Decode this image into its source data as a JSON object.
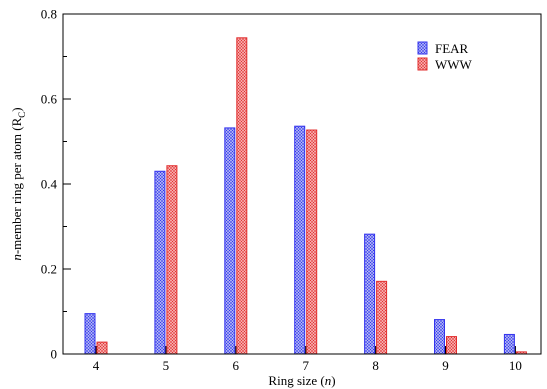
{
  "chart_data": {
    "type": "bar",
    "title": "",
    "xlabel": "Ring size (n)",
    "xlabel_parts": [
      "Ring size (",
      "n",
      ")"
    ],
    "ylabel": "n-member ring per atom (R_C)",
    "ylabel_parts": [
      "n",
      "-member ring per atom (R",
      "C",
      ")"
    ],
    "categories": [
      "4",
      "5",
      "6",
      "7",
      "8",
      "9",
      "10"
    ],
    "ylim": [
      0,
      0.8
    ],
    "yticks": [
      0,
      0.2,
      0.4,
      0.6,
      0.8
    ],
    "ytick_labels": [
      "0",
      "0.2",
      "0.4",
      "0.6",
      "0.8"
    ],
    "grid": false,
    "legend_position": "top-right",
    "series": [
      {
        "name": "FEAR",
        "color": "#3333ee",
        "fill": "#aab0f2",
        "values": [
          0.095,
          0.43,
          0.532,
          0.536,
          0.282,
          0.081,
          0.046
        ]
      },
      {
        "name": "WWW",
        "color": "#e22e2e",
        "fill": "#f4a9a9",
        "values": [
          0.028,
          0.443,
          0.744,
          0.527,
          0.171,
          0.041,
          0.005
        ]
      }
    ]
  }
}
